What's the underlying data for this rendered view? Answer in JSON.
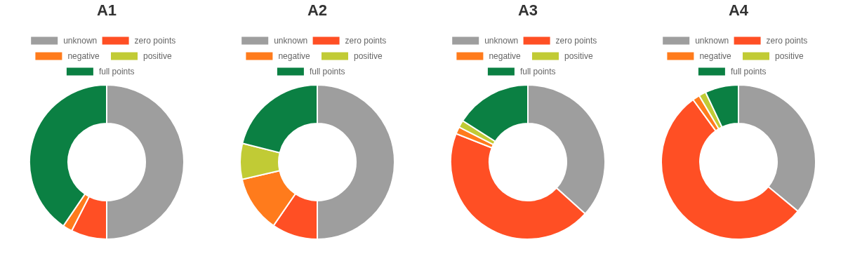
{
  "chart_data": [
    {
      "type": "donut",
      "title": "A1",
      "legend": "top",
      "categories": [
        "unknown",
        "zero points",
        "negative",
        "positive",
        "full points"
      ],
      "values": [
        50,
        7.5,
        2,
        0,
        40.5
      ],
      "colors": [
        "#9e9e9e",
        "#ff4f24",
        "#ff7b1c",
        "#c1cb35",
        "#0b8043"
      ]
    },
    {
      "type": "donut",
      "title": "A2",
      "legend": "top",
      "categories": [
        "unknown",
        "zero points",
        "negative",
        "positive",
        "full points"
      ],
      "values": [
        50,
        9.6,
        11.8,
        7.5,
        21.1
      ],
      "colors": [
        "#9e9e9e",
        "#ff4f24",
        "#ff7b1c",
        "#c1cb35",
        "#0b8043"
      ]
    },
    {
      "type": "donut",
      "title": "A3",
      "legend": "top",
      "categories": [
        "unknown",
        "zero points",
        "negative",
        "positive",
        "full points"
      ],
      "values": [
        36.7,
        44.3,
        1.5,
        1.5,
        16
      ],
      "colors": [
        "#9e9e9e",
        "#ff4f24",
        "#ff7b1c",
        "#c1cb35",
        "#0b8043"
      ]
    },
    {
      "type": "donut",
      "title": "A4",
      "legend": "top",
      "categories": [
        "unknown",
        "zero points",
        "negative",
        "positive",
        "full points"
      ],
      "values": [
        36,
        54,
        1.5,
        1.5,
        7
      ],
      "colors": [
        "#9e9e9e",
        "#ff4f24",
        "#ff7b1c",
        "#c1cb35",
        "#0b8043"
      ]
    }
  ]
}
